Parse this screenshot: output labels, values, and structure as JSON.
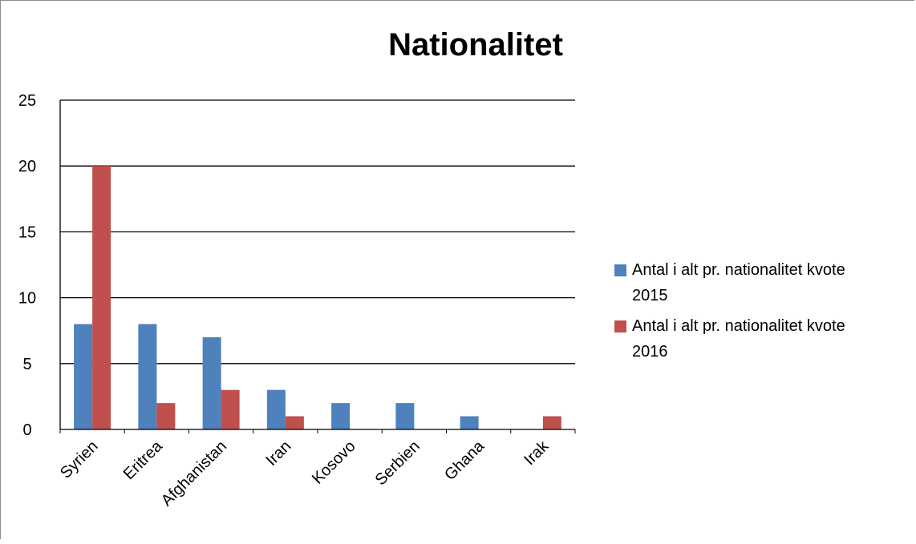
{
  "chart_data": {
    "type": "bar",
    "title": "Nationalitet",
    "xlabel": "",
    "ylabel": "",
    "categories": [
      "Syrien",
      "Eritrea",
      "Afghanistan",
      "Iran",
      "Kosovo",
      "Serbien",
      "Ghana",
      "Irak"
    ],
    "series": [
      {
        "name": "Antal i alt pr. nationalitet kvote 2015",
        "name_lines": [
          "Antal i alt pr. nationalitet kvote",
          "2015"
        ],
        "color": "#4F81BD",
        "values": [
          8,
          8,
          7,
          3,
          2,
          2,
          1,
          0
        ]
      },
      {
        "name": "Antal i alt pr. nationalitet kvote 2016",
        "name_lines": [
          "Antal i alt pr. nationalitet kvote",
          "2016"
        ],
        "color": "#C0504D",
        "values": [
          20,
          2,
          3,
          1,
          0,
          0,
          0,
          1
        ]
      }
    ],
    "ylim": [
      0,
      25
    ],
    "yticks": [
      0,
      5,
      10,
      15,
      20,
      25
    ],
    "grid": true,
    "legend_position": "right"
  }
}
